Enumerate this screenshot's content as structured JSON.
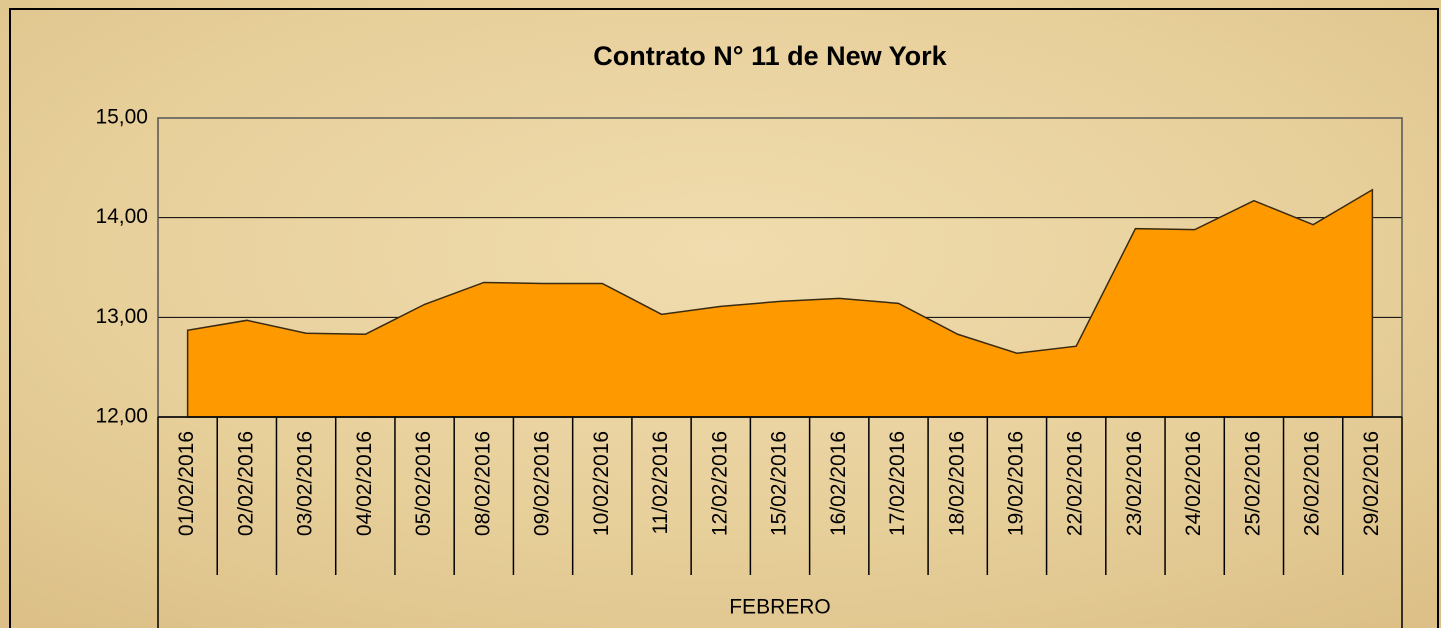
{
  "chart_data": {
    "type": "area",
    "title": "Contrato N° 11 de New York",
    "x_label": "FEBRERO",
    "categories": [
      "01/02/2016",
      "02/02/2016",
      "03/02/2016",
      "04/02/2016",
      "05/02/2016",
      "08/02/2016",
      "09/02/2016",
      "10/02/2016",
      "11/02/2016",
      "12/02/2016",
      "15/02/2016",
      "16/02/2016",
      "17/02/2016",
      "18/02/2016",
      "19/02/2016",
      "22/02/2016",
      "23/02/2016",
      "24/02/2016",
      "25/02/2016",
      "26/02/2016",
      "29/02/2016"
    ],
    "values": [
      12.87,
      12.97,
      12.84,
      12.83,
      13.13,
      13.35,
      13.34,
      13.34,
      13.03,
      13.11,
      13.16,
      13.19,
      13.14,
      12.83,
      12.64,
      12.71,
      13.89,
      13.88,
      14.17,
      13.93,
      14.28
    ],
    "color": "#ff9900",
    "ylim": [
      12,
      15
    ],
    "yticks": [
      {
        "value": 12,
        "label": "12,00"
      },
      {
        "value": 13,
        "label": "13,00"
      },
      {
        "value": 14,
        "label": "14,00"
      },
      {
        "value": 15,
        "label": "15,00"
      }
    ],
    "grid": true
  }
}
